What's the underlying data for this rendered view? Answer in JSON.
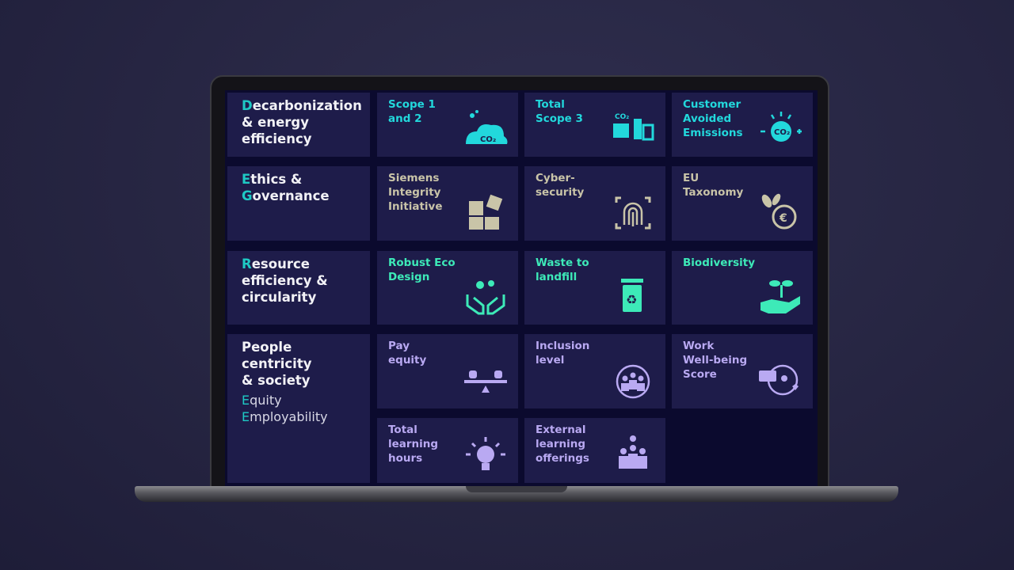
{
  "colors": {
    "cyan": "#22d8dc",
    "green": "#3deab8",
    "beige": "#c9c4a8",
    "lavender": "#b9a9f2",
    "tile": "#1e1c4a",
    "highlight": "#1ec9c4"
  },
  "categories": [
    {
      "first": "D",
      "rest": "ecarbonization\n& energy\nefficiency"
    },
    {
      "first1": "E",
      "rest1": "thics &",
      "first2": "G",
      "rest2": "overnance"
    },
    {
      "first": "R",
      "rest": "esource\nefficiency &\ncircularity"
    },
    {
      "title": "People\ncentricity\n& society",
      "sub1_first": "E",
      "sub1_rest": "quity",
      "sub2_first": "E",
      "sub2_rest": "mployability"
    }
  ],
  "tiles": [
    {
      "label": "Scope 1\nand 2",
      "icon": "co2-cloud-icon"
    },
    {
      "label": "Total\nScope 3",
      "icon": "co2-truck-factory-icon"
    },
    {
      "label": "Customer\nAvoided\nEmissions",
      "icon": "co2-avoided-icon"
    },
    {
      "label": "Siemens\nIntegrity\nInitiative",
      "icon": "puzzle-icon"
    },
    {
      "label": "Cyber-\nsecurity",
      "icon": "fingerprint-icon"
    },
    {
      "label": "EU\nTaxonomy",
      "icon": "euro-plant-icon"
    },
    {
      "label": "Robust Eco\nDesign",
      "icon": "gears-hands-icon"
    },
    {
      "label": "Waste to\nlandfill",
      "icon": "recycle-bin-icon"
    },
    {
      "label": "Biodiversity",
      "icon": "plant-hand-icon"
    },
    {
      "label": "Pay\nequity",
      "icon": "balance-scale-icon"
    },
    {
      "label": "Inclusion\nlevel",
      "icon": "people-circle-icon"
    },
    {
      "label": "Work\nWell-being\nScore",
      "icon": "wellbeing-icon"
    },
    {
      "label": "Total\nlearning\nhours",
      "icon": "lightbulb-icon"
    },
    {
      "label": "External\nlearning\nofferings",
      "icon": "people-idea-icon"
    }
  ]
}
